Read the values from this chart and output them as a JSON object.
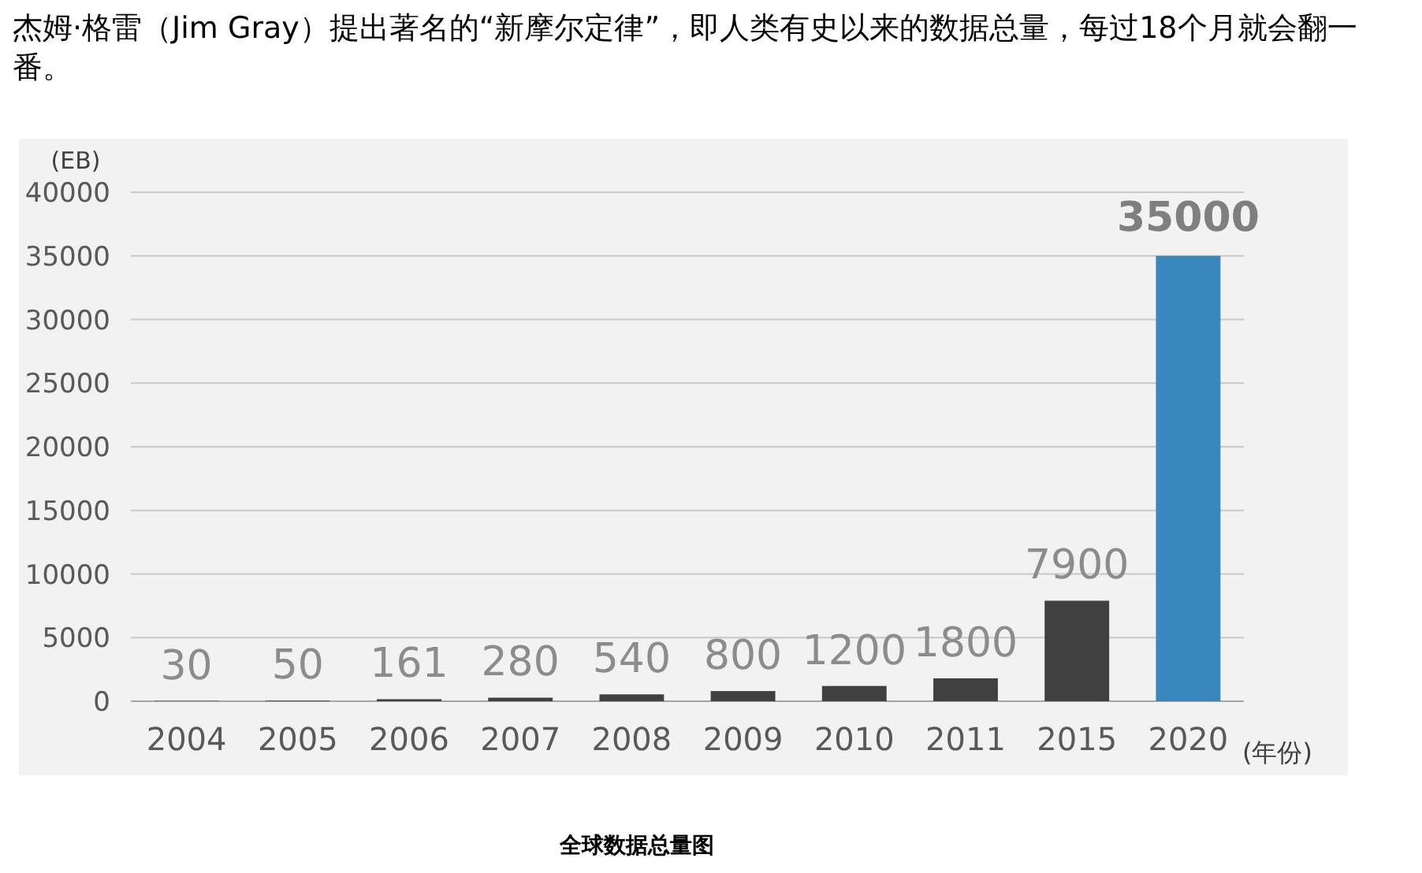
{
  "chart_data": {
    "type": "bar",
    "title": "杰姆·格雷（Jim Gray）提出著名的“新摩尔定律”，即人类有史以来的数据总量，每过18个月就会翻一番。",
    "categories": [
      "2004",
      "2005",
      "2006",
      "2007",
      "2008",
      "2009",
      "2010",
      "2011",
      "2015",
      "2020"
    ],
    "values": [
      30,
      50,
      161,
      280,
      540,
      800,
      1200,
      1800,
      7900,
      35000
    ],
    "colors": [
      "#404040",
      "#404040",
      "#404040",
      "#404040",
      "#404040",
      "#404040",
      "#404040",
      "#404040",
      "#404040",
      "#3a87bd"
    ],
    "ylabel": "(EB)",
    "xlabel": "(年份)",
    "ylim": [
      0,
      40000
    ],
    "yticks": [
      0,
      5000,
      10000,
      15000,
      20000,
      25000,
      30000,
      35000,
      40000
    ],
    "grid": "y",
    "data_labels": true,
    "annotations": [
      "全球数据总量图"
    ]
  }
}
